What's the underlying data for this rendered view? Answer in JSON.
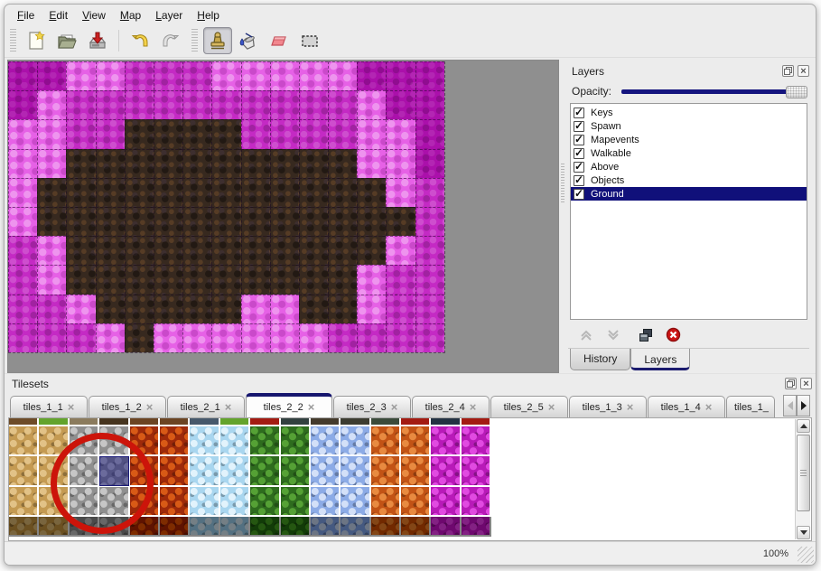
{
  "menu_bar": {
    "items": [
      {
        "label": "File"
      },
      {
        "label": "Edit"
      },
      {
        "label": "View"
      },
      {
        "label": "Map"
      },
      {
        "label": "Layer"
      },
      {
        "label": "Help"
      }
    ]
  },
  "toolbar": {
    "buttons": [
      {
        "name": "new",
        "icon": "new-file-icon",
        "active": false
      },
      {
        "name": "open",
        "icon": "open-folder-icon",
        "active": false
      },
      {
        "name": "save",
        "icon": "save-icon",
        "active": false
      },
      {
        "name": "undo",
        "icon": "undo-icon",
        "active": false
      },
      {
        "name": "redo",
        "icon": "redo-icon",
        "active": false
      },
      {
        "name": "stamp",
        "icon": "stamp-icon",
        "active": true
      },
      {
        "name": "fill",
        "icon": "fill-bucket-icon",
        "active": false
      },
      {
        "name": "eraser",
        "icon": "eraser-icon",
        "active": false
      },
      {
        "name": "select",
        "icon": "rect-select-icon",
        "active": false
      }
    ]
  },
  "map_view": {
    "tile_size": 32,
    "cols": 15,
    "rows": 10,
    "palette": {
      "D": "#ab10ab",
      "M": "#c42ac4",
      "L": "#e661e6",
      "B": "#37291f"
    },
    "grid": [
      "DDLLMMMLLLLLDDD",
      "DLMMMMMMMMMMLDD",
      "LLMMBBBBMMMMLLD",
      "LLBBBBBBBBBBLLD",
      "LBBBBBBBBBBBBLM",
      "LBBBBBBBBBBBBBM",
      "MLBBBBBBBBBBBLM",
      "MLBBBBBBBBBBLMM",
      "MMLBBBBBLLBBLMM",
      "MMMLBLLLLLLMMMM"
    ]
  },
  "layers_panel": {
    "title": "Layers",
    "opacity_label": "Opacity:",
    "opacity_percent": 100,
    "layers": [
      {
        "name": "Keys",
        "visible": true,
        "selected": false
      },
      {
        "name": "Spawn",
        "visible": true,
        "selected": false
      },
      {
        "name": "Mapevents",
        "visible": true,
        "selected": false
      },
      {
        "name": "Walkable",
        "visible": true,
        "selected": false
      },
      {
        "name": "Above",
        "visible": true,
        "selected": false
      },
      {
        "name": "Objects",
        "visible": true,
        "selected": false
      },
      {
        "name": "Ground",
        "visible": true,
        "selected": true
      }
    ],
    "action_icons": [
      "move-layer-up",
      "move-layer-down",
      "duplicate-layer",
      "delete-layer"
    ],
    "tabs": [
      {
        "label": "History",
        "active": false
      },
      {
        "label": "Layers",
        "active": true
      }
    ],
    "selection_color": "#10107a"
  },
  "tilesets_panel": {
    "title": "Tilesets",
    "tabs": [
      {
        "label": "tiles_1_1",
        "active": false,
        "truncated": false
      },
      {
        "label": "tiles_1_2",
        "active": false,
        "truncated": false
      },
      {
        "label": "tiles_2_1",
        "active": false,
        "truncated": false
      },
      {
        "label": "tiles_2_2",
        "active": true,
        "truncated": false
      },
      {
        "label": "tiles_2_3",
        "active": false,
        "truncated": false
      },
      {
        "label": "tiles_2_4",
        "active": false,
        "truncated": false
      },
      {
        "label": "tiles_2_5",
        "active": false,
        "truncated": false
      },
      {
        "label": "tiles_1_3",
        "active": false,
        "truncated": false
      },
      {
        "label": "tiles_1_4",
        "active": false,
        "truncated": false
      },
      {
        "label": "tiles_1_",
        "active": false,
        "truncated": true
      }
    ],
    "columns": [
      "sand",
      "sand",
      "stone",
      "stone",
      "lava",
      "lava",
      "ice",
      "ice",
      "moss",
      "moss",
      "crystal",
      "crystal",
      "ember",
      "ember",
      "bloom",
      "bloom"
    ],
    "materials": {
      "sand": {
        "base": "#c49a52",
        "spot": "#e2c287"
      },
      "stone": {
        "base": "#8f8f8f",
        "spot": "#c6c6c6"
      },
      "lava": {
        "base": "#9e2a0a",
        "spot": "#d85a16"
      },
      "ice": {
        "base": "#a9d6ef",
        "spot": "#e2f3fc"
      },
      "moss": {
        "base": "#2e6c1e",
        "spot": "#55a135"
      },
      "crystal": {
        "base": "#8cabe6",
        "spot": "#d3e0f8"
      },
      "ember": {
        "base": "#c25315",
        "spot": "#e88a40"
      },
      "bloom": {
        "base": "#b81ab8",
        "spot": "#e14ae1"
      }
    },
    "strip_colors": [
      "#6d4b28",
      "#63a32c",
      "#8b7b5d",
      "#46351f",
      "#6b4423",
      "#6b4423",
      "#46586b",
      "#63a32c",
      "#a31b12",
      "#32403f",
      "#443a2c",
      "#3c3c31",
      "#3a4a3a",
      "#a31b12",
      "#233242",
      "#a31b12"
    ],
    "selected_tile": {
      "col": 3,
      "row": 1
    },
    "annotation": {
      "shape": "red-circle",
      "color": "#cc140a"
    }
  },
  "status_bar": {
    "zoom_level": "100%"
  }
}
